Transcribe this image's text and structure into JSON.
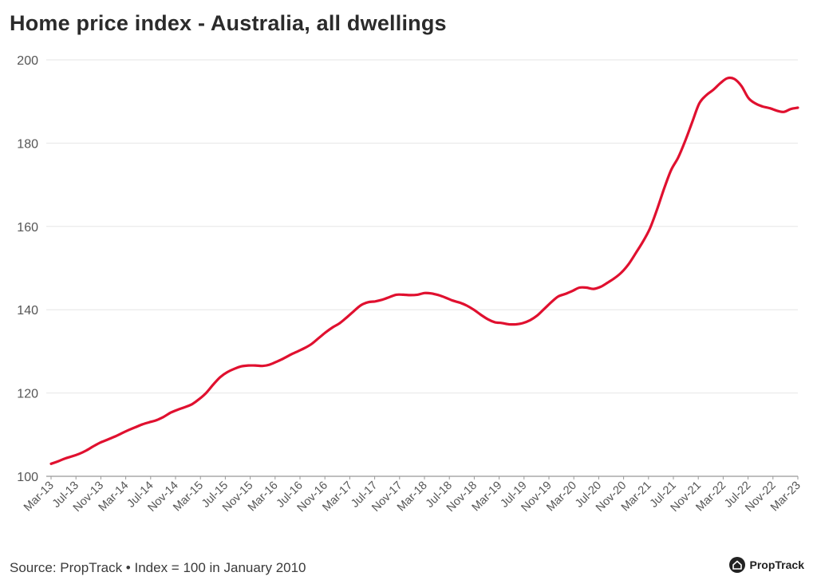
{
  "title": "Home price index - Australia, all dwellings",
  "source": "Source: PropTrack • Index = 100 in January 2010",
  "brand": {
    "name": "PropTrack",
    "icon": "house-icon"
  },
  "colors": {
    "series": "#e0102f",
    "grid": "#e6e6e6",
    "axis": "#999999",
    "text": "#555555"
  },
  "chart_data": {
    "type": "line",
    "title": "Home price index - Australia, all dwellings",
    "xlabel": "",
    "ylabel": "",
    "ylim": [
      100,
      200
    ],
    "yticks": [
      100,
      120,
      140,
      160,
      180,
      200
    ],
    "grid": "horizontal",
    "legend": "none",
    "xtick_labels": [
      "Mar-13",
      "Jul-13",
      "Nov-13",
      "Mar-14",
      "Jul-14",
      "Nov-14",
      "Mar-15",
      "Jul-15",
      "Nov-15",
      "Mar-16",
      "Jul-16",
      "Nov-16",
      "Mar-17",
      "Jul-17",
      "Nov-17",
      "Mar-18",
      "Jul-18",
      "Nov-18",
      "Mar-19",
      "Jul-19",
      "Nov-19",
      "Mar-20",
      "Jul-20",
      "Nov-20",
      "Mar-21",
      "Jul-21",
      "Nov-21",
      "Mar-22",
      "Jul-22",
      "Nov-22",
      "Mar-23"
    ],
    "series": [
      {
        "values": [
          103.0,
          103.6,
          104.3,
          104.8,
          105.4,
          106.2,
          107.2,
          108.1,
          108.8,
          109.5,
          110.3,
          111.1,
          111.8,
          112.5,
          113.0,
          113.5,
          114.3,
          115.3,
          116.0,
          116.6,
          117.3,
          118.5,
          120.0,
          122.0,
          123.8,
          125.0,
          125.8,
          126.4,
          126.6,
          126.6,
          126.5,
          126.8,
          127.5,
          128.3,
          129.2,
          130.0,
          130.8,
          131.8,
          133.2,
          134.6,
          135.8,
          136.8,
          138.2,
          139.7,
          141.1,
          141.8,
          142.0,
          142.4,
          143.0,
          143.6,
          143.6,
          143.5,
          143.6,
          144.0,
          143.9,
          143.5,
          142.9,
          142.2,
          141.7,
          141.0,
          140.0,
          138.8,
          137.7,
          137.0,
          136.8,
          136.5,
          136.5,
          136.8,
          137.5,
          138.6,
          140.2,
          141.8,
          143.2,
          143.8,
          144.5,
          145.3,
          145.3,
          145.0,
          145.5,
          146.5,
          147.6,
          149.0,
          151.0,
          153.6,
          156.3,
          159.5,
          164.0,
          169.0,
          173.5,
          176.5,
          180.5,
          185.0,
          189.5,
          191.5,
          192.8,
          194.4,
          195.6,
          195.4,
          193.7,
          190.8,
          189.5,
          188.8,
          188.4,
          187.8,
          187.5,
          188.2,
          188.5
        ]
      }
    ]
  }
}
